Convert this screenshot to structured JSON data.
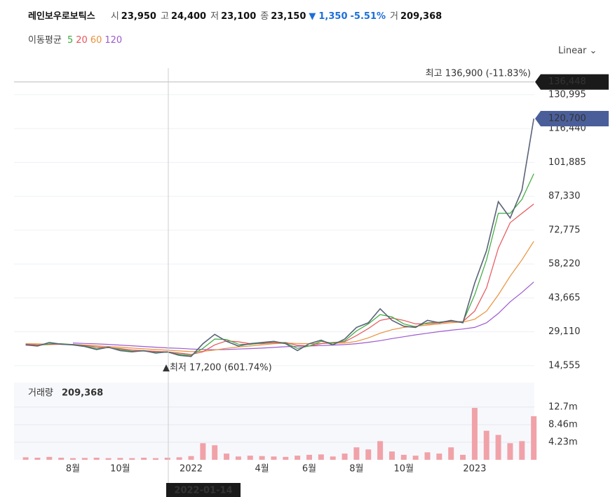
{
  "chart_data": {
    "type": "line",
    "title": "레인보우로보틱스",
    "quote": [
      {
        "label": "시",
        "value": "23,950"
      },
      {
        "label": "고",
        "value": "24,400"
      },
      {
        "label": "저",
        "value": "23,100"
      },
      {
        "label": "종",
        "value": "23,150"
      }
    ],
    "change": {
      "arrow": "▼",
      "value": "1,350",
      "percent": "-5.51%",
      "color": "#1e6fd9"
    },
    "turnover": {
      "label": "거",
      "value": "209,368"
    },
    "legend_title": "이동평균",
    "scale_mode": "Linear",
    "categories": [
      null,
      null,
      null,
      null,
      "8월",
      null,
      null,
      null,
      "10월",
      null,
      null,
      null,
      null,
      null,
      "2022",
      null,
      null,
      null,
      null,
      null,
      "4월",
      null,
      null,
      null,
      "6월",
      null,
      null,
      null,
      "8월",
      null,
      null,
      null,
      "10월",
      null,
      null,
      null,
      null,
      null,
      "2023",
      null,
      null,
      null,
      null,
      null
    ],
    "values": [
      23500,
      23000,
      24500,
      23800,
      23500,
      22800,
      21500,
      22500,
      21000,
      20500,
      21000,
      20000,
      20500,
      19000,
      18500,
      24000,
      28000,
      25000,
      23000,
      24000,
      24500,
      25000,
      24000,
      21000,
      24000,
      25500,
      23500,
      26000,
      31000,
      33000,
      39000,
      34000,
      31500,
      31000,
      34000,
      33000,
      34000,
      33000,
      50000,
      64000,
      85000,
      78000,
      90000,
      120700
    ],
    "color": "#5a6378",
    "series": [
      {
        "name": "5",
        "color": "#3caa3c",
        "values": [
          23400,
          23200,
          23900,
          24000,
          23600,
          23000,
          22000,
          22300,
          21500,
          20800,
          20800,
          20300,
          20300,
          19500,
          18900,
          22000,
          26000,
          25800,
          23800,
          23700,
          24300,
          24800,
          24300,
          22000,
          23000,
          25000,
          24200,
          25200,
          29500,
          32500,
          36500,
          35500,
          32500,
          31300,
          33000,
          33300,
          33800,
          33300,
          45000,
          60000,
          80000,
          80000,
          86000,
          97000
        ]
      },
      {
        "name": "20",
        "color": "#e8545a",
        "values": [
          23800,
          23500,
          23600,
          23800,
          23700,
          23300,
          22600,
          22300,
          21900,
          21300,
          21000,
          20700,
          20500,
          20000,
          19400,
          20500,
          23500,
          25200,
          24800,
          24000,
          24000,
          24400,
          24500,
          23300,
          23000,
          24000,
          24500,
          24800,
          27500,
          30500,
          34000,
          35000,
          34000,
          32500,
          32500,
          33000,
          33500,
          33500,
          38000,
          48000,
          65000,
          76000,
          80000,
          84000
        ]
      },
      {
        "name": "60",
        "color": "#e8923a",
        "values": [
          24000,
          23900,
          23800,
          23700,
          23600,
          23400,
          23100,
          22800,
          22500,
          22100,
          21800,
          21500,
          21200,
          20900,
          20600,
          20700,
          21300,
          22000,
          22600,
          23000,
          23500,
          24000,
          24200,
          24100,
          24000,
          24100,
          24200,
          24300,
          25000,
          26500,
          28500,
          30000,
          31000,
          31500,
          32000,
          32500,
          33000,
          33300,
          34500,
          38000,
          45000,
          53000,
          60000,
          68000
        ]
      },
      {
        "name": "120",
        "color": "#9c5ad0",
        "values": [
          null,
          null,
          null,
          null,
          24300,
          24100,
          23900,
          23700,
          23400,
          23100,
          22800,
          22500,
          22200,
          22000,
          21700,
          21500,
          21400,
          21500,
          21700,
          21900,
          22100,
          22400,
          22700,
          22900,
          23000,
          23200,
          23400,
          23600,
          24000,
          24600,
          25300,
          26200,
          27000,
          27800,
          28500,
          29200,
          29800,
          30300,
          31000,
          33000,
          37000,
          42000,
          46000,
          50500
        ]
      }
    ],
    "ylim": [
      8800,
      142400
    ],
    "yticks": [
      {
        "value": 14555,
        "label": "14,555"
      },
      {
        "value": 29110,
        "label": "29,110"
      },
      {
        "value": 43665,
        "label": "43,665"
      },
      {
        "value": 58220,
        "label": "58,220"
      },
      {
        "value": 72775,
        "label": "72,775"
      },
      {
        "value": 87330,
        "label": "87,330"
      },
      {
        "value": 101885,
        "label": "101,885"
      },
      {
        "value": 116440,
        "label": "116,440"
      },
      {
        "value": 130995,
        "label": "130,995"
      }
    ],
    "grid": true,
    "price_tags": [
      {
        "value": 136448,
        "label": "136,448",
        "color": "#1a1a1a"
      },
      {
        "value": 120700,
        "label": "120,700",
        "color": "#4a5f9a"
      }
    ],
    "annotations": {
      "high": "최고 136,900 (-11.83%)",
      "low": "▲최저 17,200 (601.74%)"
    },
    "crosshair_label": "2022-01-14",
    "volume": {
      "label": "거래량",
      "last": "209,368",
      "color": "#f0a2a8",
      "values": [
        600000,
        500000,
        700000,
        500000,
        400000,
        450000,
        500000,
        400000,
        450000,
        400000,
        500000,
        400000,
        500000,
        600000,
        900000,
        4000000,
        3500000,
        1500000,
        800000,
        1000000,
        900000,
        800000,
        700000,
        1000000,
        1200000,
        1300000,
        800000,
        1500000,
        3000000,
        2500000,
        4500000,
        2000000,
        1200000,
        1000000,
        1800000,
        1500000,
        3000000,
        1200000,
        12500000,
        7000000,
        6000000,
        4000000,
        4500000,
        10500000
      ],
      "ylim": [
        0,
        18600000
      ],
      "yticks": [
        {
          "value": 4230000,
          "label": "4.23m"
        },
        {
          "value": 8460000,
          "label": "8.46m"
        },
        {
          "value": 12700000,
          "label": "12.7m"
        }
      ]
    }
  }
}
